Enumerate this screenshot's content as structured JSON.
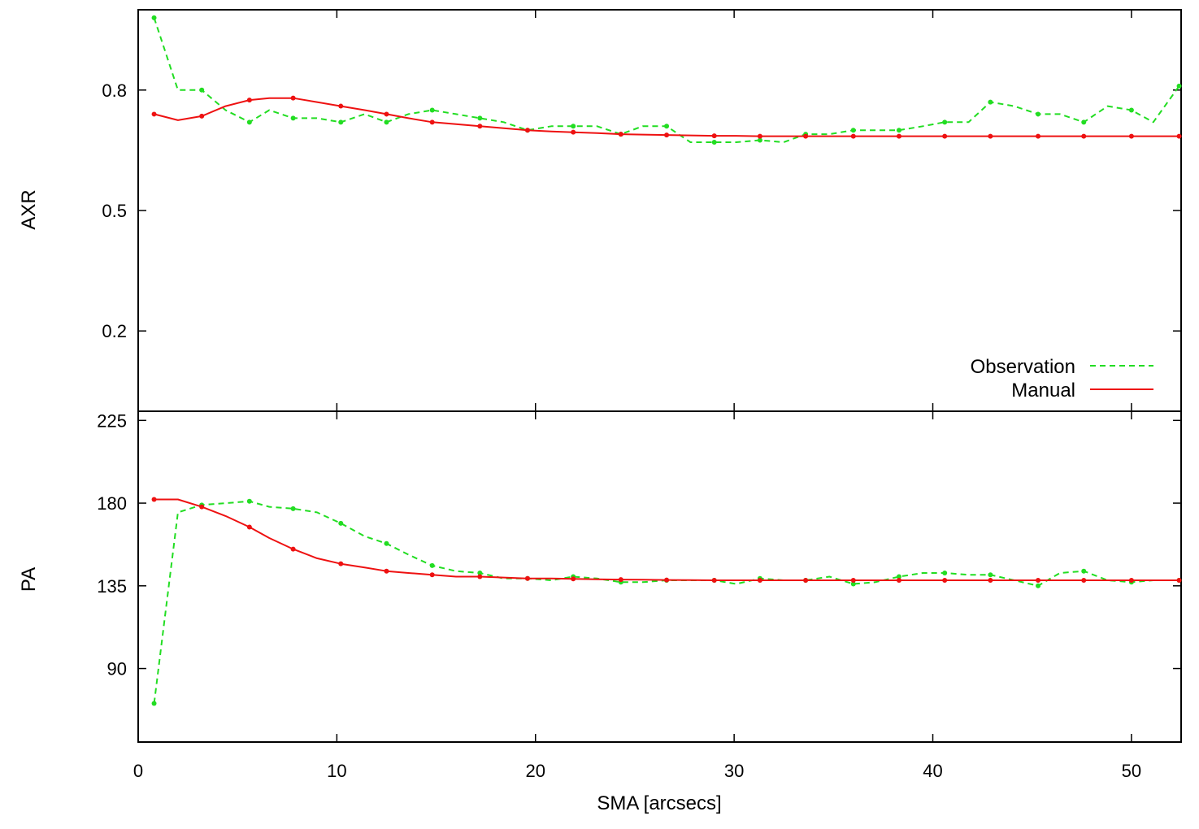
{
  "chart_data": [
    {
      "type": "line",
      "ylabel": "AXR",
      "xlim": [
        0,
        52.5
      ],
      "ylim": [
        0,
        1.0
      ],
      "yticks": [
        0.2,
        0.5,
        0.8
      ],
      "ytick_labels": [
        "0.2",
        "0.5",
        "0.8"
      ],
      "xticks": [
        0,
        10,
        20,
        30,
        40,
        50
      ],
      "legend_position": "bottom-right",
      "series": [
        {
          "name": "Observation",
          "color": "#22dd22",
          "style": "dashed",
          "marker": "dot",
          "x": [
            0.8,
            2.0,
            3.2,
            4.4,
            5.6,
            6.6,
            7.8,
            9.0,
            10.2,
            11.4,
            12.5,
            13.6,
            14.8,
            16.0,
            17.2,
            18.4,
            19.6,
            20.8,
            21.9,
            23.1,
            24.3,
            25.4,
            26.6,
            27.8,
            29.0,
            30.1,
            31.3,
            32.5,
            33.6,
            34.8,
            36.0,
            37.1,
            38.3,
            39.5,
            40.6,
            41.8,
            42.9,
            44.1,
            45.3,
            46.4,
            47.6,
            48.8,
            50.0,
            51.1,
            52.4
          ],
          "y": [
            0.98,
            0.8,
            0.8,
            0.75,
            0.72,
            0.75,
            0.73,
            0.73,
            0.72,
            0.74,
            0.72,
            0.74,
            0.75,
            0.74,
            0.73,
            0.72,
            0.7,
            0.71,
            0.71,
            0.71,
            0.69,
            0.71,
            0.71,
            0.67,
            0.67,
            0.67,
            0.675,
            0.67,
            0.69,
            0.69,
            0.7,
            0.7,
            0.7,
            0.71,
            0.72,
            0.72,
            0.77,
            0.76,
            0.74,
            0.74,
            0.72,
            0.76,
            0.75,
            0.72,
            0.81
          ]
        },
        {
          "name": "Manual",
          "color": "#ee1111",
          "style": "solid",
          "marker": "dot",
          "x": [
            0.8,
            2.0,
            3.2,
            4.4,
            5.6,
            6.6,
            7.8,
            9.0,
            10.2,
            11.4,
            12.5,
            13.6,
            14.8,
            16.0,
            17.2,
            18.4,
            19.6,
            20.8,
            21.9,
            23.1,
            24.3,
            25.4,
            26.6,
            27.8,
            29.0,
            30.1,
            31.3,
            32.5,
            33.6,
            34.8,
            36.0,
            37.1,
            38.3,
            39.5,
            40.6,
            41.8,
            42.9,
            44.1,
            45.3,
            46.4,
            47.6,
            48.8,
            50.0,
            51.1,
            52.4
          ],
          "y": [
            0.74,
            0.725,
            0.735,
            0.76,
            0.775,
            0.78,
            0.78,
            0.77,
            0.76,
            0.75,
            0.74,
            0.73,
            0.72,
            0.715,
            0.71,
            0.705,
            0.7,
            0.697,
            0.695,
            0.693,
            0.69,
            0.689,
            0.688,
            0.687,
            0.686,
            0.686,
            0.685,
            0.685,
            0.685,
            0.685,
            0.685,
            0.685,
            0.685,
            0.685,
            0.685,
            0.685,
            0.685,
            0.685,
            0.685,
            0.685,
            0.685,
            0.685,
            0.685,
            0.685,
            0.685
          ]
        }
      ]
    },
    {
      "type": "line",
      "ylabel": "PA",
      "xlabel": "SMA [arcsecs]",
      "xlim": [
        0,
        52.5
      ],
      "ylim": [
        50,
        230
      ],
      "yticks": [
        90,
        135,
        180,
        225
      ],
      "ytick_labels": [
        "90",
        "135",
        "180",
        "225"
      ],
      "xticks": [
        0,
        10,
        20,
        30,
        40,
        50
      ],
      "xtick_labels": [
        "0",
        "10",
        "20",
        "30",
        "40",
        "50"
      ],
      "series": [
        {
          "name": "Observation",
          "color": "#22dd22",
          "style": "dashed",
          "marker": "dot",
          "x": [
            0.8,
            2.0,
            3.2,
            4.4,
            5.6,
            6.6,
            7.8,
            9.0,
            10.2,
            11.4,
            12.5,
            13.6,
            14.8,
            16.0,
            17.2,
            18.4,
            19.6,
            20.8,
            21.9,
            23.1,
            24.3,
            25.4,
            26.6,
            27.8,
            29.0,
            30.1,
            31.3,
            32.5,
            33.6,
            34.8,
            36.0,
            37.1,
            38.3,
            39.5,
            40.6,
            41.8,
            42.9,
            44.1,
            45.3,
            46.4,
            47.6,
            48.8,
            50.0,
            51.1,
            52.4
          ],
          "y": [
            71,
            175,
            179,
            180,
            181,
            178,
            177,
            175,
            169,
            162,
            158,
            152,
            146,
            143,
            142,
            139,
            139,
            138,
            140,
            139,
            137,
            137,
            138,
            138,
            138,
            136,
            139,
            138,
            138,
            140,
            136,
            137,
            140,
            142,
            142,
            141,
            141,
            138,
            135,
            142,
            143,
            138,
            137,
            138,
            138
          ]
        },
        {
          "name": "Manual",
          "color": "#ee1111",
          "style": "solid",
          "marker": "dot",
          "x": [
            0.8,
            2.0,
            3.2,
            4.4,
            5.6,
            6.6,
            7.8,
            9.0,
            10.2,
            11.4,
            12.5,
            13.6,
            14.8,
            16.0,
            17.2,
            18.4,
            19.6,
            20.8,
            21.9,
            23.1,
            24.3,
            25.4,
            26.6,
            27.8,
            29.0,
            30.1,
            31.3,
            32.5,
            33.6,
            34.8,
            36.0,
            37.1,
            38.3,
            39.5,
            40.6,
            41.8,
            42.9,
            44.1,
            45.3,
            46.4,
            47.6,
            48.8,
            50.0,
            51.1,
            52.4
          ],
          "y": [
            182,
            182,
            178,
            173,
            167,
            161,
            155,
            150,
            147,
            145,
            143,
            142,
            141,
            140,
            140,
            139.5,
            139,
            139,
            138.8,
            138.6,
            138.4,
            138.3,
            138.2,
            138.1,
            138,
            138,
            138,
            138,
            138,
            138,
            138,
            138,
            138,
            138,
            138,
            138,
            138,
            138,
            138,
            138,
            138,
            138,
            138,
            138,
            138
          ]
        }
      ]
    }
  ]
}
